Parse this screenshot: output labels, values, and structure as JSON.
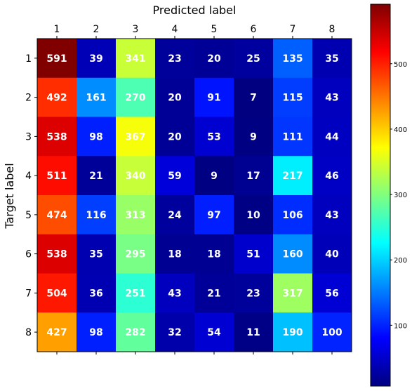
{
  "chart_data": {
    "type": "heatmap",
    "title": "",
    "xlabel": "Predicted label",
    "ylabel": "Target label",
    "x_categories": [
      "1",
      "2",
      "3",
      "4",
      "5",
      "6",
      "7",
      "8"
    ],
    "y_categories": [
      "1",
      "2",
      "3",
      "4",
      "5",
      "6",
      "7",
      "8"
    ],
    "values": [
      [
        591,
        39,
        341,
        23,
        20,
        25,
        135,
        35
      ],
      [
        492,
        161,
        270,
        20,
        91,
        7,
        115,
        43
      ],
      [
        538,
        98,
        367,
        20,
        53,
        9,
        111,
        44
      ],
      [
        511,
        21,
        340,
        59,
        9,
        17,
        217,
        46
      ],
      [
        474,
        116,
        313,
        24,
        97,
        10,
        106,
        43
      ],
      [
        538,
        35,
        295,
        18,
        18,
        51,
        160,
        40
      ],
      [
        504,
        36,
        251,
        43,
        21,
        23,
        317,
        56
      ],
      [
        427,
        98,
        282,
        32,
        54,
        11,
        190,
        100
      ]
    ],
    "colormap": "jet",
    "color_range": [
      7,
      591
    ],
    "colorbar": {
      "ticks": [
        "100",
        "200",
        "300",
        "400",
        "500"
      ],
      "tick_values": [
        100,
        200,
        300,
        400,
        500
      ]
    },
    "x_axis_position": "top",
    "grid": false,
    "cell_label_color": "#ffffff"
  }
}
